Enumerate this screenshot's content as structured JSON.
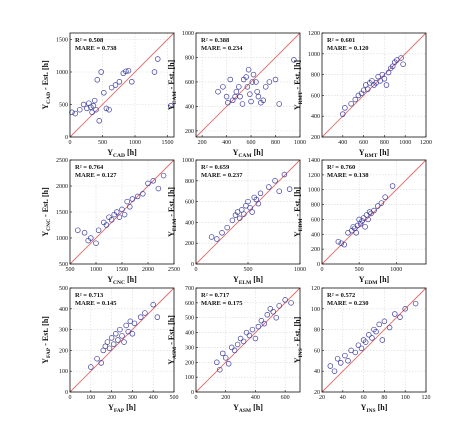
{
  "chart_data": [
    {
      "type": "scatter",
      "xlabel": {
        "main": "Y",
        "sub": "CAD",
        "unit": " [h]"
      },
      "ylabel": {
        "main": "Y",
        "sub": "CAD",
        "unit": " - Est. [h]"
      },
      "annotation": {
        "r2": "R² = 0.508",
        "mare": "MARE = 0.738"
      },
      "xlim": [
        0,
        1600
      ],
      "ylim": [
        0,
        1600
      ],
      "xticks": [
        0,
        500,
        1000,
        1500
      ],
      "yticks": [
        0,
        500,
        1000,
        1500
      ],
      "line": "y=x",
      "points": [
        [
          30,
          380
        ],
        [
          80,
          360
        ],
        [
          150,
          420
        ],
        [
          210,
          500
        ],
        [
          260,
          440
        ],
        [
          290,
          520
        ],
        [
          320,
          460
        ],
        [
          340,
          380
        ],
        [
          360,
          480
        ],
        [
          380,
          560
        ],
        [
          400,
          420
        ],
        [
          420,
          880
        ],
        [
          450,
          250
        ],
        [
          480,
          1000
        ],
        [
          520,
          680
        ],
        [
          560,
          440
        ],
        [
          600,
          420
        ],
        [
          640,
          760
        ],
        [
          700,
          800
        ],
        [
          760,
          850
        ],
        [
          820,
          980
        ],
        [
          860,
          1010
        ],
        [
          900,
          1020
        ],
        [
          950,
          850
        ],
        [
          1300,
          1000
        ],
        [
          1350,
          1200
        ],
        [
          1550,
          480
        ]
      ]
    },
    {
      "type": "scatter",
      "xlabel": {
        "main": "Y",
        "sub": "CAM",
        "unit": " [h]"
      },
      "ylabel": {
        "main": "Y",
        "sub": "CAM",
        "unit": " - Est. [h]"
      },
      "annotation": {
        "r2": "R² = 0.388",
        "mare": "MARE = 0.234"
      },
      "xlim": [
        150,
        1000
      ],
      "ylim": [
        150,
        1000
      ],
      "xticks": [
        200,
        400,
        600,
        800,
        1000
      ],
      "yticks": [
        200,
        400,
        600,
        800,
        1000
      ],
      "line": "y=x",
      "points": [
        [
          330,
          520
        ],
        [
          370,
          560
        ],
        [
          400,
          480
        ],
        [
          410,
          430
        ],
        [
          430,
          620
        ],
        [
          450,
          450
        ],
        [
          470,
          480
        ],
        [
          480,
          520
        ],
        [
          500,
          560
        ],
        [
          510,
          480
        ],
        [
          530,
          420
        ],
        [
          540,
          620
        ],
        [
          560,
          640
        ],
        [
          570,
          560
        ],
        [
          580,
          700
        ],
        [
          590,
          500
        ],
        [
          600,
          440
        ],
        [
          610,
          600
        ],
        [
          620,
          660
        ],
        [
          640,
          600
        ],
        [
          650,
          520
        ],
        [
          660,
          480
        ],
        [
          680,
          430
        ],
        [
          700,
          450
        ],
        [
          720,
          560
        ],
        [
          750,
          600
        ],
        [
          800,
          620
        ],
        [
          830,
          420
        ],
        [
          950,
          780
        ]
      ]
    },
    {
      "type": "scatter",
      "xlabel": {
        "main": "Y",
        "sub": "RMT",
        "unit": " [h]"
      },
      "ylabel": {
        "main": "Y",
        "sub": "RMT",
        "unit": " - Est. [h]"
      },
      "annotation": {
        "r2": "R² = 0.601",
        "mare": "MARE = 0.120"
      },
      "xlim": [
        200,
        1200
      ],
      "ylim": [
        200,
        1200
      ],
      "xticks": [
        400,
        600,
        800,
        1000,
        1200
      ],
      "yticks": [
        200,
        400,
        600,
        800,
        1000,
        1200
      ],
      "line": "y=x",
      "points": [
        [
          400,
          420
        ],
        [
          420,
          480
        ],
        [
          480,
          520
        ],
        [
          520,
          560
        ],
        [
          550,
          600
        ],
        [
          580,
          620
        ],
        [
          600,
          650
        ],
        [
          620,
          700
        ],
        [
          640,
          660
        ],
        [
          660,
          720
        ],
        [
          680,
          740
        ],
        [
          700,
          700
        ],
        [
          720,
          720
        ],
        [
          740,
          780
        ],
        [
          760,
          740
        ],
        [
          780,
          800
        ],
        [
          800,
          760
        ],
        [
          820,
          700
        ],
        [
          840,
          820
        ],
        [
          860,
          860
        ],
        [
          880,
          880
        ],
        [
          900,
          920
        ],
        [
          920,
          940
        ],
        [
          960,
          960
        ],
        [
          980,
          900
        ]
      ]
    },
    {
      "type": "scatter",
      "xlabel": {
        "main": "Y",
        "sub": "CNC",
        "unit": " [h]"
      },
      "ylabel": {
        "main": "Y",
        "sub": "CNC",
        "unit": " - Est. [h]"
      },
      "annotation": {
        "r2": "R² = 0.764",
        "mare": "MARE = 0.127"
      },
      "xlim": [
        500,
        2500
      ],
      "ylim": [
        500,
        2500
      ],
      "xticks": [
        500,
        1000,
        1500,
        2000,
        2500
      ],
      "yticks": [
        500,
        1000,
        1500,
        2000,
        2500
      ],
      "line": "y=x",
      "points": [
        [
          650,
          1150
        ],
        [
          780,
          1100
        ],
        [
          850,
          950
        ],
        [
          900,
          1000
        ],
        [
          1000,
          900
        ],
        [
          1050,
          1150
        ],
        [
          1150,
          1300
        ],
        [
          1200,
          1250
        ],
        [
          1250,
          1400
        ],
        [
          1300,
          1350
        ],
        [
          1350,
          1450
        ],
        [
          1400,
          1500
        ],
        [
          1450,
          1400
        ],
        [
          1500,
          1550
        ],
        [
          1550,
          1450
        ],
        [
          1600,
          1700
        ],
        [
          1650,
          1600
        ],
        [
          1700,
          1750
        ],
        [
          1800,
          1800
        ],
        [
          1900,
          1850
        ],
        [
          2000,
          2050
        ],
        [
          2100,
          2100
        ],
        [
          2200,
          1950
        ],
        [
          2300,
          2200
        ]
      ]
    },
    {
      "type": "scatter",
      "xlabel": {
        "main": "Y",
        "sub": "ELM",
        "unit": " [h]"
      },
      "ylabel": {
        "main": "Y",
        "sub": "ELM",
        "unit": " - Est. [h]"
      },
      "annotation": {
        "r2": "R² = 0.659",
        "mare": "MARE = 0.237"
      },
      "xlim": [
        0,
        1000
      ],
      "ylim": [
        0,
        1000
      ],
      "xticks": [
        0,
        500,
        1000
      ],
      "yticks": [
        0,
        200,
        400,
        600,
        800,
        1000
      ],
      "line": "y=x",
      "points": [
        [
          150,
          260
        ],
        [
          200,
          240
        ],
        [
          250,
          300
        ],
        [
          300,
          350
        ],
        [
          350,
          420
        ],
        [
          380,
          470
        ],
        [
          400,
          500
        ],
        [
          420,
          440
        ],
        [
          440,
          520
        ],
        [
          460,
          480
        ],
        [
          480,
          560
        ],
        [
          500,
          600
        ],
        [
          520,
          540
        ],
        [
          540,
          500
        ],
        [
          560,
          640
        ],
        [
          580,
          620
        ],
        [
          600,
          580
        ],
        [
          620,
          680
        ],
        [
          700,
          740
        ],
        [
          760,
          800
        ],
        [
          800,
          700
        ],
        [
          850,
          860
        ],
        [
          900,
          720
        ]
      ]
    },
    {
      "type": "scatter",
      "xlabel": {
        "main": "Y",
        "sub": "EDM",
        "unit": " [h]"
      },
      "ylabel": {
        "main": "Y",
        "sub": "EDM",
        "unit": " - Est. [h]"
      },
      "annotation": {
        "r2": "R² = 0.760",
        "mare": "MARE = 0.138"
      },
      "xlim": [
        0,
        1400
      ],
      "ylim": [
        0,
        1400
      ],
      "xticks": [
        0,
        500,
        1000
      ],
      "yticks": [
        0,
        200,
        400,
        600,
        800,
        1000,
        1200,
        1400
      ],
      "line": "y=x",
      "points": [
        [
          220,
          300
        ],
        [
          260,
          280
        ],
        [
          300,
          260
        ],
        [
          350,
          420
        ],
        [
          400,
          450
        ],
        [
          420,
          500
        ],
        [
          440,
          480
        ],
        [
          460,
          420
        ],
        [
          480,
          520
        ],
        [
          500,
          600
        ],
        [
          520,
          540
        ],
        [
          540,
          580
        ],
        [
          560,
          620
        ],
        [
          580,
          500
        ],
        [
          600,
          660
        ],
        [
          620,
          600
        ],
        [
          640,
          700
        ],
        [
          660,
          680
        ],
        [
          700,
          720
        ],
        [
          750,
          780
        ],
        [
          800,
          820
        ],
        [
          850,
          900
        ],
        [
          950,
          1050
        ]
      ]
    },
    {
      "type": "scatter",
      "xlabel": {
        "main": "Y",
        "sub": "FAP",
        "unit": " [h]"
      },
      "ylabel": {
        "main": "Y",
        "sub": "FAP",
        "unit": " - Est. [h]"
      },
      "annotation": {
        "r2": "R² = 0.713",
        "mare": "MARE = 0.145"
      },
      "xlim": [
        0,
        500
      ],
      "ylim": [
        0,
        500
      ],
      "xticks": [
        0,
        100,
        200,
        300,
        400,
        500
      ],
      "yticks": [
        0,
        100,
        200,
        300,
        400,
        500
      ],
      "line": "y=x",
      "points": [
        [
          100,
          120
        ],
        [
          130,
          160
        ],
        [
          150,
          140
        ],
        [
          160,
          200
        ],
        [
          170,
          220
        ],
        [
          180,
          240
        ],
        [
          190,
          210
        ],
        [
          200,
          260
        ],
        [
          210,
          230
        ],
        [
          220,
          280
        ],
        [
          230,
          250
        ],
        [
          240,
          300
        ],
        [
          250,
          270
        ],
        [
          260,
          240
        ],
        [
          270,
          320
        ],
        [
          280,
          290
        ],
        [
          290,
          340
        ],
        [
          300,
          280
        ],
        [
          310,
          330
        ],
        [
          340,
          360
        ],
        [
          360,
          380
        ],
        [
          400,
          420
        ],
        [
          420,
          360
        ]
      ]
    },
    {
      "type": "scatter",
      "xlabel": {
        "main": "Y",
        "sub": "ASM",
        "unit": " [h]"
      },
      "ylabel": {
        "main": "Y",
        "sub": "ASM",
        "unit": " - Est. [h]"
      },
      "annotation": {
        "r2": "R² = 0.717",
        "mare": "MARE = 0.175"
      },
      "xlim": [
        0,
        700
      ],
      "ylim": [
        0,
        700
      ],
      "xticks": [
        0,
        200,
        400,
        600
      ],
      "yticks": [
        0,
        100,
        200,
        300,
        400,
        500,
        600,
        700
      ],
      "line": "y=x",
      "points": [
        [
          140,
          200
        ],
        [
          160,
          150
        ],
        [
          180,
          260
        ],
        [
          200,
          230
        ],
        [
          220,
          190
        ],
        [
          240,
          300
        ],
        [
          260,
          280
        ],
        [
          280,
          320
        ],
        [
          300,
          360
        ],
        [
          320,
          340
        ],
        [
          340,
          400
        ],
        [
          360,
          380
        ],
        [
          380,
          420
        ],
        [
          400,
          360
        ],
        [
          420,
          440
        ],
        [
          440,
          480
        ],
        [
          460,
          460
        ],
        [
          480,
          520
        ],
        [
          500,
          560
        ],
        [
          520,
          540
        ],
        [
          540,
          500
        ],
        [
          560,
          580
        ],
        [
          600,
          620
        ],
        [
          640,
          600
        ]
      ]
    },
    {
      "type": "scatter",
      "xlabel": {
        "main": "Y",
        "sub": "INS",
        "unit": " [h]"
      },
      "ylabel": {
        "main": "Y",
        "sub": "INS",
        "unit": " - Est. [h]"
      },
      "annotation": {
        "r2": "R² = 0.572",
        "mare": "MARE = 0.230"
      },
      "xlim": [
        20,
        120
      ],
      "ylim": [
        20,
        120
      ],
      "xticks": [
        20,
        40,
        60,
        80,
        100,
        120
      ],
      "yticks": [
        20,
        40,
        60,
        80,
        100,
        120
      ],
      "line": "y=x",
      "points": [
        [
          28,
          45
        ],
        [
          32,
          40
        ],
        [
          35,
          52
        ],
        [
          38,
          48
        ],
        [
          42,
          55
        ],
        [
          45,
          50
        ],
        [
          48,
          60
        ],
        [
          52,
          58
        ],
        [
          55,
          65
        ],
        [
          58,
          62
        ],
        [
          60,
          70
        ],
        [
          62,
          68
        ],
        [
          65,
          75
        ],
        [
          68,
          72
        ],
        [
          70,
          80
        ],
        [
          72,
          78
        ],
        [
          75,
          85
        ],
        [
          78,
          70
        ],
        [
          80,
          88
        ],
        [
          85,
          82
        ],
        [
          90,
          95
        ],
        [
          95,
          92
        ],
        [
          100,
          100
        ],
        [
          110,
          105
        ]
      ]
    }
  ]
}
